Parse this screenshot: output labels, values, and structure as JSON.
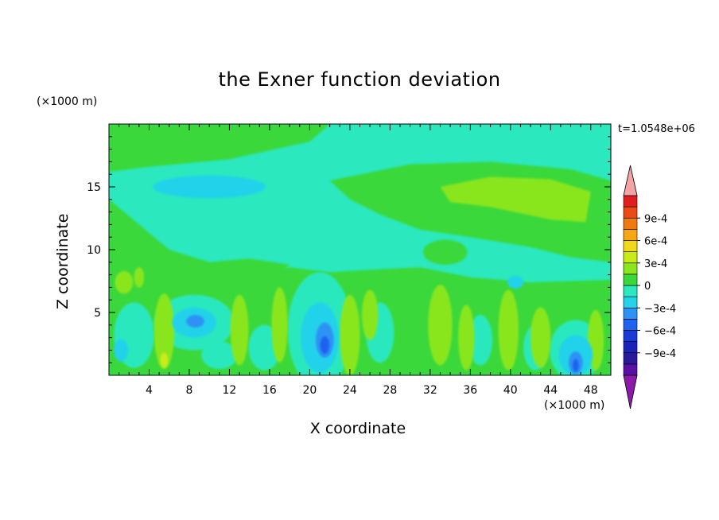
{
  "chart_data": {
    "type": "heatmap",
    "title": "the Exner function deviation",
    "xlabel": "X coordinate",
    "ylabel": "Z coordinate",
    "x_unit": "(×1000 m)",
    "z_unit": "(×1000 m)",
    "time_label": "t=1.0548e+06",
    "xlim": [
      0,
      50
    ],
    "ylim": [
      0,
      20
    ],
    "x_ticks": [
      4,
      8,
      12,
      16,
      20,
      24,
      28,
      32,
      36,
      40,
      44,
      48
    ],
    "y_ticks": [
      5,
      10,
      15
    ],
    "colorbar": {
      "levels": [
        -0.0012,
        -0.00105,
        -0.0009,
        -0.00075,
        -0.0006,
        -0.00045,
        -0.0003,
        -0.00015,
        0,
        0.00015,
        0.0003,
        0.00045,
        0.0006,
        0.00075,
        0.0009,
        0.00105,
        0.0012
      ],
      "colors": [
        "#5a0fa5",
        "#2a1a9a",
        "#1a22b8",
        "#1a3ad8",
        "#1f62f0",
        "#2e92f4",
        "#24d2ea",
        "#2be8be",
        "#3bd83b",
        "#8ae61e",
        "#c8ec1a",
        "#f0d81a",
        "#f6a814",
        "#f07a12",
        "#ea4a14",
        "#e01e1e"
      ],
      "under_color": "#8c1aa8",
      "over_color": "#f4a4a4",
      "tick_labels": [
        "9e-4",
        "6e-4",
        "3e-4",
        "0",
        "−3e-4",
        "−6e-4",
        "−9e-4"
      ],
      "tick_values": [
        0.0009,
        0.0006,
        0.0003,
        0,
        -0.0003,
        -0.0006,
        -0.0009
      ]
    },
    "field_features": [
      {
        "kind": "cell",
        "x": 21.5,
        "z": 2.8,
        "value": -0.0006
      },
      {
        "kind": "cell",
        "x": 46.5,
        "z": 1.2,
        "value": -0.0006
      },
      {
        "kind": "cell",
        "x": 8.5,
        "z": 4.2,
        "value": -0.0003
      },
      {
        "kind": "cell",
        "x": 8.5,
        "z": 15.0,
        "value": -0.0002
      },
      {
        "kind": "cell",
        "x": 40.0,
        "z": 14.0,
        "value": 0.00022
      }
    ],
    "grid": false,
    "colorbar_placement": "right"
  }
}
